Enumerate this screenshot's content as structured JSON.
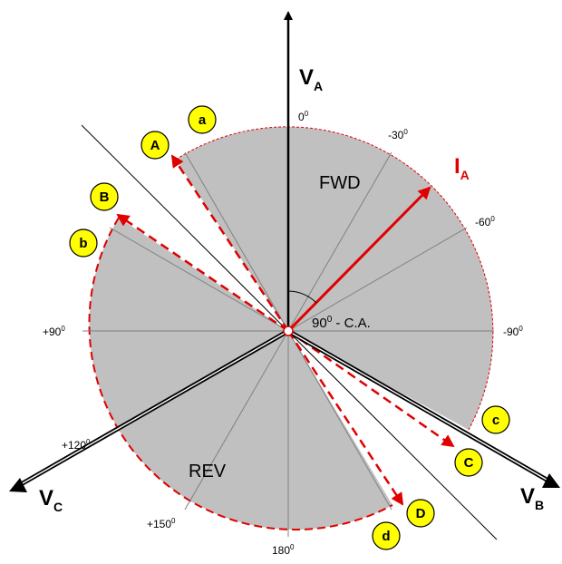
{
  "angle_labels": {
    "deg0": "0",
    "deg_m30": "-30",
    "deg_m60": "-60",
    "deg_m90": "-90",
    "deg_p90": "+90",
    "deg_p120": "+120",
    "deg_p150": "+150",
    "deg180": "180",
    "degree_mark": "0"
  },
  "regions": {
    "forward": "FWD",
    "reverse": "REV"
  },
  "axes": {
    "va": {
      "main": "V",
      "sub": "A"
    },
    "vb": {
      "main": "V",
      "sub": "B"
    },
    "vc": {
      "main": "V",
      "sub": "C"
    }
  },
  "current_vector": {
    "main": "I",
    "sub": "A"
  },
  "characteristic_angle": {
    "prefix": "90",
    "sup": "0",
    "suffix": " - C.A."
  },
  "limit_badges": {
    "upper_A": "A",
    "lower_a": "a",
    "upper_B": "B",
    "lower_b": "b",
    "upper_C": "C",
    "lower_c": "c",
    "upper_D": "D",
    "lower_d": "d"
  },
  "colors": {
    "zone_fill": "#c0c0c0",
    "limit_line": "#e00000",
    "badge_fill": "#ffff00",
    "axis": "#000000"
  }
}
